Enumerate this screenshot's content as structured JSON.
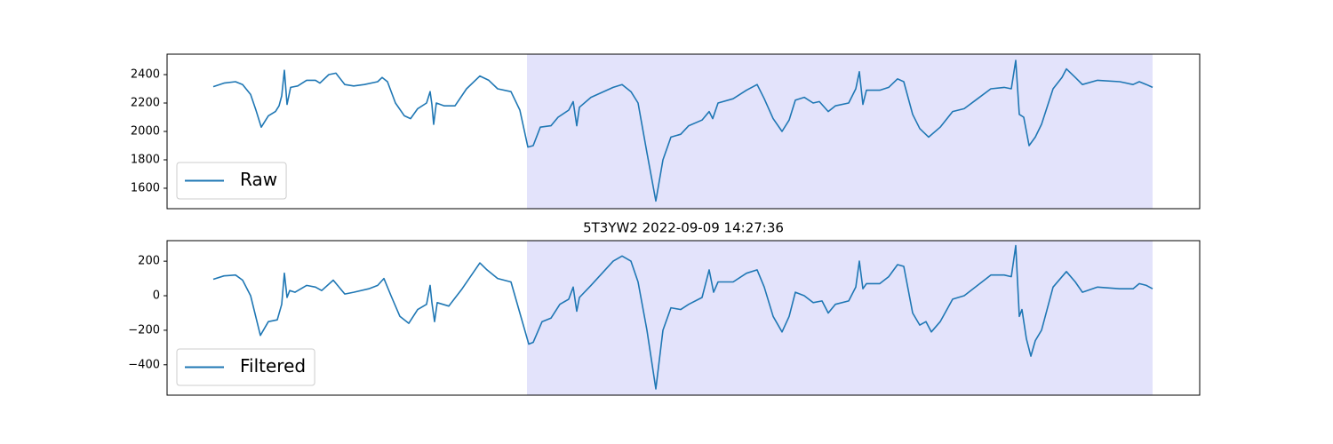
{
  "chart_data": [
    {
      "type": "line",
      "legend": "lower left",
      "xlim": [
        -52,
        1110
      ],
      "ylim": [
        1456,
        2544
      ],
      "yticks": [
        1600,
        1800,
        2000,
        2200,
        2400
      ],
      "span": [
        353,
        1057
      ],
      "span_color": "#e3e3fb",
      "series": [
        {
          "name": "Raw",
          "color": "#1f77b4",
          "x": [
            0,
            12,
            25,
            33,
            42,
            48,
            54,
            62,
            70,
            74,
            77,
            80,
            83,
            87,
            95,
            105,
            115,
            120,
            130,
            138,
            148,
            158,
            170,
            185,
            190,
            196,
            205,
            215,
            222,
            230,
            240,
            244,
            246,
            248,
            251,
            260,
            272,
            285,
            300,
            310,
            320,
            335,
            345,
            354,
            360,
            368,
            380,
            388,
            400,
            405,
            409,
            412,
            425,
            450,
            460,
            470,
            478,
            488,
            498,
            506,
            515,
            526,
            535,
            550,
            558,
            562,
            568,
            585,
            600,
            612,
            620,
            630,
            640,
            648,
            655,
            665,
            675,
            682,
            692,
            700,
            715,
            723,
            727,
            731,
            735,
            750,
            760,
            770,
            777,
            787,
            795,
            805,
            818,
            832,
            845,
            860,
            875,
            890,
            898,
            903,
            907,
            912,
            918,
            925,
            932,
            945,
            955,
            960,
            970,
            978,
            995,
            1020,
            1035,
            1042,
            1050,
            1057
          ],
          "values": [
            2315,
            2340,
            2350,
            2330,
            2260,
            2150,
            2030,
            2110,
            2140,
            2180,
            2250,
            2430,
            2190,
            2310,
            2320,
            2360,
            2360,
            2340,
            2400,
            2410,
            2330,
            2320,
            2330,
            2350,
            2380,
            2350,
            2200,
            2110,
            2090,
            2160,
            2200,
            2280,
            2190,
            2050,
            2200,
            2180,
            2180,
            2300,
            2390,
            2360,
            2300,
            2280,
            2150,
            1890,
            1900,
            2030,
            2040,
            2100,
            2150,
            2210,
            2040,
            2170,
            2240,
            2310,
            2330,
            2280,
            2200,
            1850,
            1510,
            1800,
            1960,
            1980,
            2040,
            2080,
            2140,
            2090,
            2200,
            2230,
            2290,
            2330,
            2230,
            2090,
            2000,
            2080,
            2220,
            2240,
            2200,
            2210,
            2140,
            2180,
            2200,
            2300,
            2420,
            2190,
            2290,
            2290,
            2310,
            2370,
            2350,
            2120,
            2020,
            1960,
            2030,
            2140,
            2160,
            2230,
            2300,
            2310,
            2300,
            2500,
            2120,
            2100,
            1900,
            1960,
            2050,
            2300,
            2380,
            2440,
            2380,
            2330,
            2360,
            2350,
            2330,
            2350,
            2330,
            2310
          ]
        }
      ]
    },
    {
      "type": "line",
      "title": "5T3YW2 2022-09-09 14:27:36",
      "legend": "lower left",
      "xlim": [
        -52,
        1110
      ],
      "ylim": [
        -576,
        319
      ],
      "yticks": [
        {
          "value": -400,
          "label": "−400"
        },
        {
          "value": -200,
          "label": "−200"
        },
        0,
        200
      ],
      "span": [
        353,
        1057
      ],
      "span_color": "#e3e3fb",
      "series": [
        {
          "name": "Filtered",
          "color": "#1f77b4",
          "x": [
            0,
            12,
            25,
            33,
            42,
            53,
            62,
            72,
            77,
            80,
            83,
            86,
            92,
            105,
            115,
            122,
            135,
            148,
            158,
            175,
            185,
            192,
            200,
            210,
            220,
            230,
            240,
            244,
            246,
            249,
            252,
            265,
            280,
            300,
            308,
            320,
            335,
            345,
            355,
            360,
            370,
            380,
            390,
            400,
            405,
            409,
            412,
            425,
            450,
            460,
            470,
            478,
            488,
            498,
            506,
            515,
            526,
            535,
            550,
            558,
            563,
            568,
            585,
            600,
            612,
            620,
            630,
            640,
            648,
            655,
            665,
            675,
            685,
            692,
            700,
            715,
            723,
            727,
            731,
            735,
            750,
            760,
            770,
            777,
            787,
            795,
            802,
            808,
            818,
            832,
            845,
            860,
            875,
            890,
            898,
            903,
            907,
            910,
            915,
            920,
            925,
            932,
            945,
            960,
            970,
            978,
            995,
            1020,
            1035,
            1042,
            1050,
            1057
          ],
          "values": [
            95,
            115,
            120,
            90,
            0,
            -230,
            -150,
            -140,
            -50,
            130,
            -10,
            30,
            20,
            60,
            50,
            30,
            90,
            10,
            20,
            40,
            60,
            100,
            0,
            -120,
            -160,
            -80,
            -50,
            60,
            -40,
            -150,
            -40,
            -60,
            40,
            190,
            150,
            100,
            80,
            -100,
            -280,
            -270,
            -150,
            -130,
            -50,
            -20,
            50,
            -90,
            -10,
            60,
            200,
            230,
            200,
            80,
            -200,
            -540,
            -200,
            -70,
            -80,
            -50,
            -10,
            150,
            20,
            80,
            80,
            130,
            150,
            50,
            -120,
            -210,
            -120,
            20,
            0,
            -40,
            -30,
            -100,
            -50,
            -30,
            50,
            200,
            40,
            70,
            70,
            110,
            180,
            170,
            -100,
            -170,
            -150,
            -210,
            -150,
            -20,
            0,
            60,
            120,
            120,
            110,
            290,
            -120,
            -80,
            -250,
            -350,
            -260,
            -200,
            50,
            140,
            80,
            20,
            50,
            40,
            40,
            70,
            60,
            40
          ]
        }
      ]
    }
  ]
}
